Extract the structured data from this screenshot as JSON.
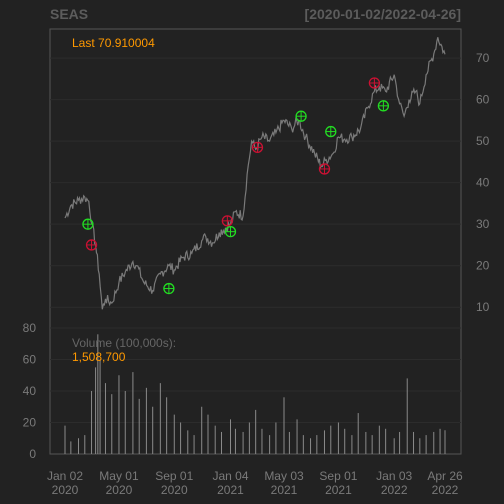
{
  "header": {
    "ticker": "SEAS",
    "date_range": "[2020-01-02/2022-04-26]"
  },
  "price_panel": {
    "last_label": "Last 70.910004",
    "last_color": "#ff9900"
  },
  "volume_panel": {
    "label": "Volume (100,000s):",
    "value": "1,508,700",
    "label_color": "#666666",
    "value_color": "#ff9900"
  },
  "colors": {
    "background": "#222222",
    "grid": "#2c2c2c",
    "price_line": "#7a7a7a",
    "volume_bar": "#8a8a8a",
    "buy_marker": "#22dd22",
    "sell_marker": "#cc1133"
  },
  "chart_data": [
    {
      "type": "line",
      "name": "price",
      "x_ticks": [
        {
          "date": "2020-01-02",
          "month": "Jan 02",
          "year": "2020"
        },
        {
          "date": "2020-05-01",
          "month": "May 01",
          "year": "2020"
        },
        {
          "date": "2020-09-01",
          "month": "Sep 01",
          "year": "2020"
        },
        {
          "date": "2021-01-04",
          "month": "Jan 04",
          "year": "2021"
        },
        {
          "date": "2021-05-03",
          "month": "May 03",
          "year": "2021"
        },
        {
          "date": "2021-09-01",
          "month": "Sep 01",
          "year": "2021"
        },
        {
          "date": "2022-01-03",
          "month": "Jan 03",
          "year": "2022"
        },
        {
          "date": "2022-04-26",
          "month": "Apr 26",
          "year": "2022"
        }
      ],
      "y_ticks": [
        10,
        20,
        30,
        40,
        50,
        60,
        70
      ],
      "ylim": [
        5,
        77
      ],
      "grid": true,
      "x": [
        "2020-01-02",
        "2020-01-15",
        "2020-02-01",
        "2020-02-15",
        "2020-02-24",
        "2020-03-02",
        "2020-03-10",
        "2020-03-18",
        "2020-03-25",
        "2020-04-01",
        "2020-04-15",
        "2020-05-01",
        "2020-05-15",
        "2020-06-01",
        "2020-06-10",
        "2020-06-25",
        "2020-07-15",
        "2020-08-01",
        "2020-08-20",
        "2020-09-01",
        "2020-09-20",
        "2020-10-10",
        "2020-11-01",
        "2020-11-10",
        "2020-11-25",
        "2020-12-10",
        "2021-01-04",
        "2021-01-15",
        "2021-02-01",
        "2021-02-10",
        "2021-02-20",
        "2021-03-01",
        "2021-03-15",
        "2021-04-01",
        "2021-04-15",
        "2021-05-03",
        "2021-05-20",
        "2021-06-05",
        "2021-06-20",
        "2021-07-10",
        "2021-07-25",
        "2021-08-05",
        "2021-08-20",
        "2021-09-01",
        "2021-09-15",
        "2021-10-01",
        "2021-10-20",
        "2021-11-05",
        "2021-11-20",
        "2021-12-01",
        "2021-12-15",
        "2022-01-03",
        "2022-01-15",
        "2022-01-25",
        "2022-02-05",
        "2022-02-20",
        "2022-03-01",
        "2022-03-15",
        "2022-04-01",
        "2022-04-10",
        "2022-04-26"
      ],
      "y": [
        31.5,
        34.5,
        35.8,
        36.5,
        35.5,
        30,
        25,
        18,
        9.5,
        12,
        11,
        16,
        18.5,
        21,
        20,
        16,
        14,
        18,
        20,
        19,
        22,
        23,
        26,
        27,
        25.5,
        28,
        30,
        33,
        32,
        42,
        50,
        48,
        51,
        50,
        52,
        55,
        53,
        55,
        51,
        47,
        44,
        45.5,
        47,
        51,
        50.5,
        51,
        53,
        58,
        62,
        63,
        62,
        66,
        59,
        56,
        60,
        62,
        59,
        66,
        71,
        75,
        70.91
      ],
      "signals": [
        {
          "type": "buy",
          "date": "2020-02-22",
          "value": 30
        },
        {
          "type": "sell",
          "date": "2020-03-01",
          "value": 25
        },
        {
          "type": "buy",
          "date": "2020-08-20",
          "value": 14.5
        },
        {
          "type": "sell",
          "date": "2020-12-28",
          "value": 30.8
        },
        {
          "type": "buy",
          "date": "2021-01-04",
          "value": 28.2
        },
        {
          "type": "sell",
          "date": "2021-03-05",
          "value": 48.5
        },
        {
          "type": "buy",
          "date": "2021-06-10",
          "value": 56
        },
        {
          "type": "sell",
          "date": "2021-08-01",
          "value": 43.3
        },
        {
          "type": "buy",
          "date": "2021-08-15",
          "value": 52.3
        },
        {
          "type": "sell",
          "date": "2021-11-20",
          "value": 64
        },
        {
          "type": "buy",
          "date": "2021-12-10",
          "value": 58.5
        }
      ]
    },
    {
      "type": "bar",
      "name": "volume",
      "unit": "100,000s",
      "y_ticks": [
        0,
        20,
        40,
        60,
        80
      ],
      "ylim": [
        0,
        80
      ],
      "grid": true,
      "x": [
        "2020-01-02",
        "2020-01-15",
        "2020-02-01",
        "2020-02-15",
        "2020-03-01",
        "2020-03-10",
        "2020-03-15",
        "2020-03-20",
        "2020-04-01",
        "2020-04-15",
        "2020-05-01",
        "2020-05-15",
        "2020-06-01",
        "2020-06-15",
        "2020-07-01",
        "2020-07-15",
        "2020-08-01",
        "2020-08-15",
        "2020-09-01",
        "2020-09-15",
        "2020-10-01",
        "2020-10-15",
        "2020-11-01",
        "2020-11-15",
        "2020-12-01",
        "2020-12-15",
        "2021-01-04",
        "2021-01-15",
        "2021-02-01",
        "2021-02-15",
        "2021-03-01",
        "2021-03-15",
        "2021-04-01",
        "2021-04-15",
        "2021-05-03",
        "2021-05-15",
        "2021-06-01",
        "2021-06-15",
        "2021-07-01",
        "2021-07-15",
        "2021-08-01",
        "2021-08-15",
        "2021-09-01",
        "2021-09-15",
        "2021-10-01",
        "2021-10-15",
        "2021-11-01",
        "2021-11-15",
        "2021-12-01",
        "2021-12-15",
        "2022-01-03",
        "2022-01-15",
        "2022-02-01",
        "2022-02-15",
        "2022-03-01",
        "2022-03-15",
        "2022-04-01",
        "2022-04-15",
        "2022-04-26"
      ],
      "values": [
        18,
        8,
        10,
        12,
        40,
        55,
        76,
        60,
        45,
        38,
        50,
        40,
        52,
        35,
        42,
        30,
        45,
        36,
        25,
        20,
        15,
        12,
        30,
        25,
        18,
        14,
        22,
        16,
        14,
        20,
        28,
        16,
        12,
        20,
        36,
        14,
        22,
        12,
        10,
        12,
        15,
        18,
        20,
        16,
        12,
        26,
        14,
        12,
        18,
        16,
        10,
        14,
        48,
        14,
        10,
        12,
        14,
        16,
        15.1
      ]
    }
  ]
}
